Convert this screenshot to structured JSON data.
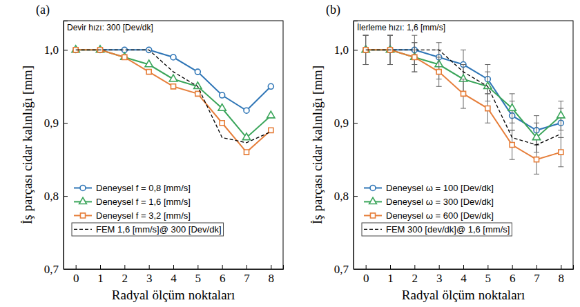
{
  "chart_data": [
    {
      "type": "line",
      "title": "Devir hızı: 300 [Dev/dk]",
      "panel_label": "(a)",
      "xlabel": "Radyal ölçüm noktaları",
      "ylabel": "İş parçası cidar kalınlığı [mm]",
      "x": [
        0,
        1,
        2,
        3,
        4,
        5,
        6,
        7,
        8
      ],
      "xlim": [
        -0.5,
        8.5
      ],
      "xticks": [
        0,
        1,
        2,
        3,
        4,
        5,
        6,
        7,
        8
      ],
      "ylim": [
        0.7,
        1.04
      ],
      "yticks": [
        {
          "value": 0.7,
          "label": "0,7"
        },
        {
          "value": 0.8,
          "label": "0,8"
        },
        {
          "value": 0.9,
          "label": "0,9"
        },
        {
          "value": 1.0,
          "label": "1,0"
        }
      ],
      "legend": "lower left",
      "series": [
        {
          "name": "Deneysel f = 0,8 [mm/s]",
          "color": "#2e75b6",
          "marker": "circle",
          "line_style": "solid",
          "values": [
            1.0,
            1.0,
            1.0,
            1.0,
            0.99,
            0.97,
            0.938,
            0.917,
            0.95
          ]
        },
        {
          "name": "Deneysel f = 1,6 [mm/s]",
          "color": "#3aa55a",
          "marker": "triangle",
          "line_style": "solid",
          "values": [
            1.0,
            1.0,
            0.99,
            0.98,
            0.96,
            0.95,
            0.92,
            0.88,
            0.91
          ]
        },
        {
          "name": "Deneysel f = 3,2 [mm/s]",
          "color": "#e67e3a",
          "marker": "square",
          "line_style": "solid",
          "values": [
            1.0,
            1.0,
            0.99,
            0.97,
            0.95,
            0.94,
            0.9,
            0.86,
            0.89
          ]
        },
        {
          "name": "FEM 1,6 [mm/s]@ 300 [Dev/dk]",
          "color": "#000000",
          "marker": "none",
          "line_style": "dashed",
          "values": [
            1.0,
            1.0,
            1.0,
            1.0,
            0.97,
            0.95,
            0.88,
            0.873,
            0.888
          ]
        }
      ]
    },
    {
      "type": "line",
      "title": "İlerleme hızı: 1,6 [mm/s]",
      "panel_label": "(b)",
      "xlabel": "Radyal ölçüm noktaları",
      "ylabel": "İş parçası cidar kalınlığı [mm]",
      "x": [
        0,
        1,
        2,
        3,
        4,
        5,
        6,
        7,
        8
      ],
      "xlim": [
        -0.5,
        8.5
      ],
      "xticks": [
        0,
        1,
        2,
        3,
        4,
        5,
        6,
        7,
        8
      ],
      "ylim": [
        0.7,
        1.04
      ],
      "yticks": [
        {
          "value": 0.7,
          "label": "0,7"
        },
        {
          "value": 0.8,
          "label": "0,8"
        },
        {
          "value": 0.9,
          "label": "0,9"
        },
        {
          "value": 1.0,
          "label": "1,0"
        }
      ],
      "legend": "lower left",
      "series": [
        {
          "name": "Deneysel ω = 100 [Dev/dk]",
          "color": "#2e75b6",
          "marker": "circle",
          "line_style": "solid",
          "values": [
            1.0,
            1.0,
            1.0,
            0.99,
            0.98,
            0.96,
            0.91,
            0.89,
            0.9
          ],
          "errors": [
            0.02,
            0.02,
            0.02,
            0.02,
            0.02,
            0.02,
            0.02,
            0.02,
            0.02
          ]
        },
        {
          "name": "Deneysel ω = 300 [Dev/dk]",
          "color": "#3aa55a",
          "marker": "triangle",
          "line_style": "solid",
          "values": [
            1.0,
            1.0,
            0.99,
            0.98,
            0.96,
            0.95,
            0.92,
            0.88,
            0.91
          ],
          "errors": [
            0.02,
            0.02,
            0.02,
            0.02,
            0.02,
            0.02,
            0.02,
            0.02,
            0.02
          ]
        },
        {
          "name": "Deneysel ω = 600 [Dev/dk]",
          "color": "#e67e3a",
          "marker": "square",
          "line_style": "solid",
          "values": [
            1.0,
            1.0,
            0.99,
            0.97,
            0.94,
            0.92,
            0.87,
            0.85,
            0.86
          ],
          "errors": [
            0.02,
            0.02,
            0.02,
            0.02,
            0.02,
            0.02,
            0.02,
            0.02,
            0.02
          ]
        },
        {
          "name": "FEM 300 [dev/dk]@ 1,6 [mm/s]",
          "color": "#000000",
          "marker": "none",
          "line_style": "dashed",
          "values": [
            1.0,
            1.0,
            1.0,
            1.0,
            0.97,
            0.95,
            0.88,
            0.87,
            0.885
          ]
        }
      ]
    }
  ]
}
